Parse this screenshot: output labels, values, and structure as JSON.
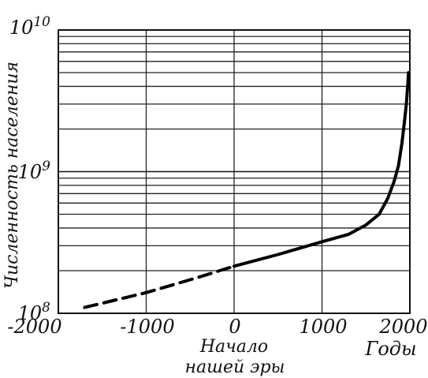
{
  "chart_data": {
    "type": "line",
    "title": "",
    "xlabel": "Годы",
    "ylabel": "Численность населения",
    "y_scale": "log",
    "xlim": [
      -2000,
      2000
    ],
    "ylim": [
      100000000,
      10000000000
    ],
    "x_tick_labels": [
      "-2000",
      "-1000",
      "0",
      "1000",
      "2000"
    ],
    "x_origin_note": [
      "Начало",
      "нашей эры"
    ],
    "y_tick_labels": [
      {
        "base": "10",
        "exp": "8"
      },
      {
        "base": "10",
        "exp": "9"
      },
      {
        "base": "10",
        "exp": "10"
      }
    ],
    "grid": true,
    "series": [
      {
        "style": "dashed",
        "points": [
          {
            "x": -1700,
            "y": 110000000
          },
          {
            "x": -1000,
            "y": 140000000
          },
          {
            "x": -400,
            "y": 180000000
          },
          {
            "x": 0,
            "y": 215000000
          }
        ]
      },
      {
        "style": "solid",
        "points": [
          {
            "x": 0,
            "y": 215000000
          },
          {
            "x": 500,
            "y": 260000000
          },
          {
            "x": 1000,
            "y": 320000000
          },
          {
            "x": 1300,
            "y": 360000000
          },
          {
            "x": 1500,
            "y": 420000000
          },
          {
            "x": 1650,
            "y": 500000000
          },
          {
            "x": 1750,
            "y": 650000000
          },
          {
            "x": 1820,
            "y": 850000000
          },
          {
            "x": 1870,
            "y": 1100000000
          },
          {
            "x": 1910,
            "y": 1600000000
          },
          {
            "x": 1940,
            "y": 2300000000
          },
          {
            "x": 1960,
            "y": 3000000000
          },
          {
            "x": 1975,
            "y": 4000000000
          },
          {
            "x": 1985,
            "y": 5000000000
          }
        ]
      }
    ]
  }
}
